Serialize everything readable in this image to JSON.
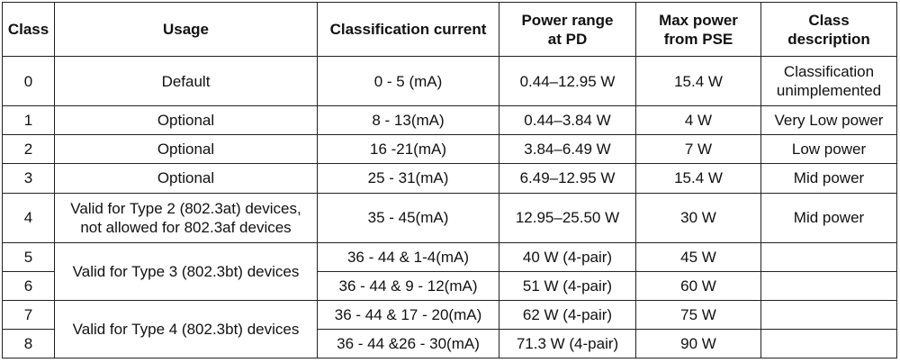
{
  "headers": {
    "class": "Class",
    "usage": "Usage",
    "current": "Classification current",
    "pd_range": "Power range\nat PD",
    "pse_max": "Max power\nfrom PSE",
    "desc": "Class\ndescription"
  },
  "rows": [
    {
      "class": "0",
      "usage": "Default",
      "current": "0 - 5 (mA)",
      "pd": "0.44–12.95 W",
      "pse": "15.4 W",
      "desc": "Classification\nunimplemented"
    },
    {
      "class": "1",
      "usage": "Optional",
      "current": "8 - 13(mA)",
      "pd": "0.44–3.84 W",
      "pse": "4 W",
      "desc": "Very Low power"
    },
    {
      "class": "2",
      "usage": "Optional",
      "current": "16 -21(mA)",
      "pd": "3.84–6.49 W",
      "pse": "7 W",
      "desc": "Low power"
    },
    {
      "class": "3",
      "usage": "Optional",
      "current": "25 - 31(mA)",
      "pd": "6.49–12.95 W",
      "pse": "15.4 W",
      "desc": "Mid power"
    },
    {
      "class": "4",
      "usage": "Valid for Type 2 (802.3at) devices,\nnot allowed for 802.3af devices",
      "current": "35 - 45(mA)",
      "pd": "12.95–25.50 W",
      "pse": "30 W",
      "desc": "Mid power"
    },
    {
      "class": "5",
      "current": "36 - 44 & 1-4(mA)",
      "pd": "40 W (4-pair)",
      "pse": "45 W",
      "desc": ""
    },
    {
      "class": "6",
      "current": "36 - 44 & 9 - 12(mA)",
      "pd": "51 W (4-pair)",
      "pse": "60 W",
      "desc": ""
    },
    {
      "class": "7",
      "current": "36 - 44 & 17 - 20(mA)",
      "pd": "62 W (4-pair)",
      "pse": "75 W",
      "desc": ""
    },
    {
      "class": "8",
      "current": "36 - 44 &26 - 30(mA)",
      "pd": "71.3 W (4-pair)",
      "pse": "90 W",
      "desc": ""
    }
  ],
  "merged_usage": {
    "type3": "Valid for Type 3 (802.3bt) devices",
    "type4": "Valid for Type 4 (802.3bt) devices"
  }
}
